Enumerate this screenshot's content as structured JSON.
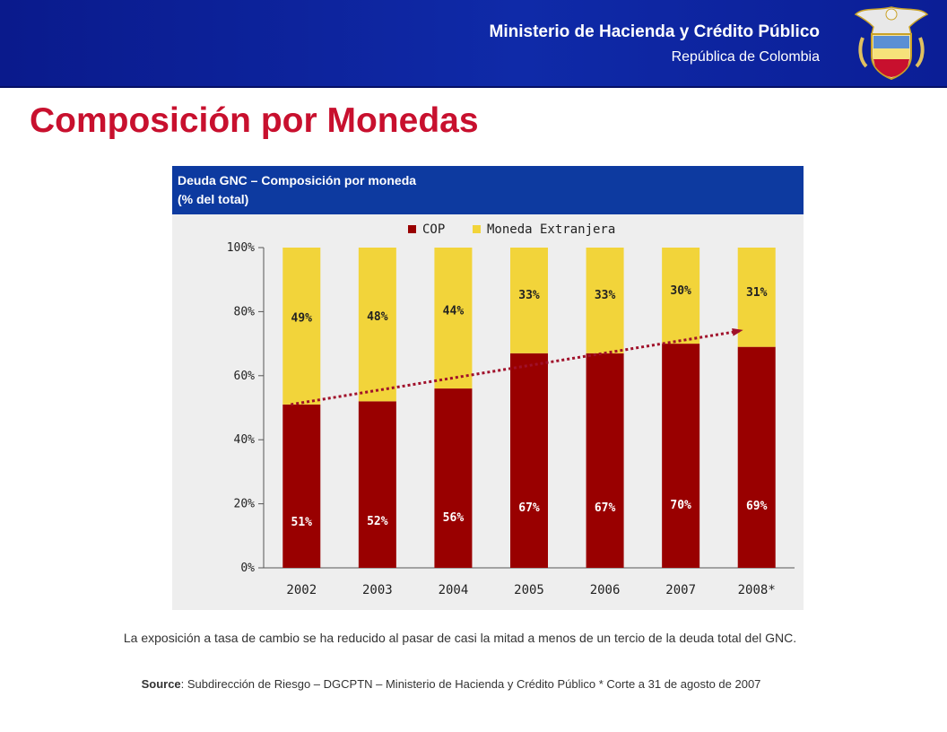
{
  "header": {
    "ministry": "Ministerio de Hacienda y Crédito Público",
    "republic": "República de Colombia"
  },
  "page_title": "Composición por Monedas",
  "chart_header": {
    "line1": "Deuda GNC – Composición por moneda",
    "line2": "(% del total)"
  },
  "colors": {
    "cop": "#990000",
    "foreign": "#f2d43a",
    "trend": "#a0102a",
    "header_bg": "#0d3aa0"
  },
  "chart_data": {
    "type": "bar",
    "stacked": true,
    "categories": [
      "2002",
      "2003",
      "2004",
      "2005",
      "2006",
      "2007",
      "2008*"
    ],
    "series": [
      {
        "name": "COP",
        "values": [
          51,
          52,
          56,
          67,
          67,
          70,
          69
        ],
        "labels": [
          "51%",
          "52%",
          "56%",
          "67%",
          "67%",
          "70%",
          "69%"
        ]
      },
      {
        "name": "Moneda Extranjera",
        "values": [
          49,
          48,
          44,
          33,
          33,
          30,
          31
        ],
        "labels": [
          "49%",
          "48%",
          "44%",
          "33%",
          "33%",
          "30%",
          "31%"
        ]
      }
    ],
    "ylim": [
      0,
      100
    ],
    "yticks": [
      "0%",
      "20%",
      "40%",
      "60%",
      "80%",
      "100%"
    ],
    "legend_position": "top",
    "trend_line": {
      "from_category": "2002",
      "from_value": 51,
      "to_category": "2008*",
      "to_value": 74
    }
  },
  "note": "La exposición a tasa de cambio se ha reducido al pasar de casi la mitad a menos de un tercio de la deuda total del GNC.",
  "source": {
    "label": "Source",
    "text": ": Subdirección de Riesgo – DGCPTN – Ministerio de Hacienda y Crédito Público * Corte a 31 de agosto de 2007"
  }
}
